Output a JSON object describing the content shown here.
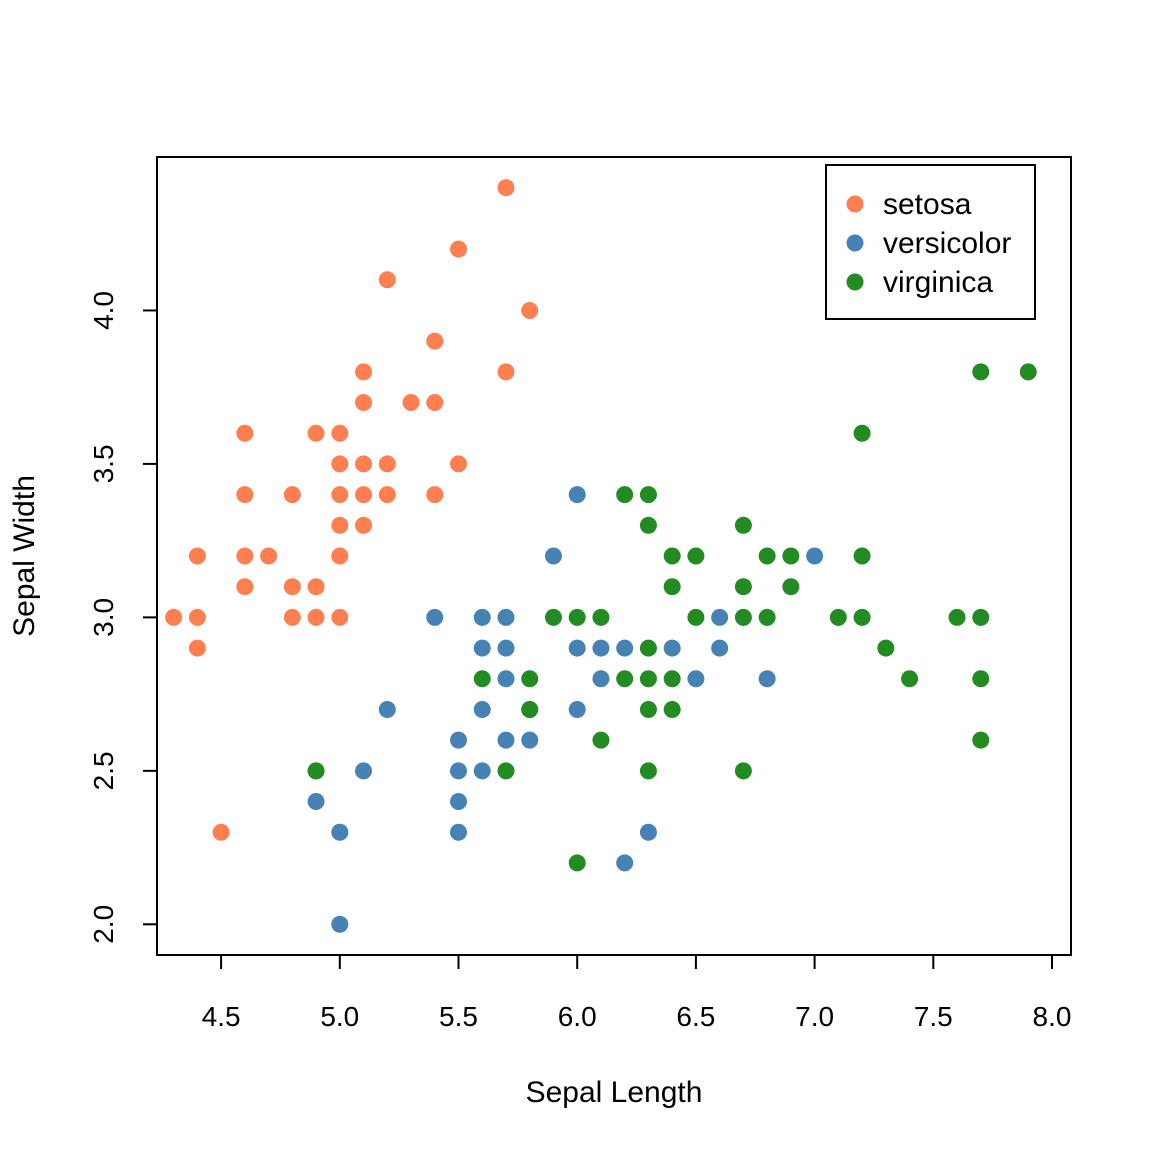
{
  "chart_data": {
    "type": "scatter",
    "title": "",
    "xlabel": "Sepal Length",
    "ylabel": "Sepal Width",
    "xlim": [
      4.23,
      8.08
    ],
    "ylim": [
      1.9,
      4.5
    ],
    "xticks": [
      "4.5",
      "5.0",
      "5.5",
      "6.0",
      "6.5",
      "7.0",
      "7.5",
      "8.0"
    ],
    "yticks": [
      "2.0",
      "2.5",
      "3.0",
      "3.5",
      "4.0"
    ],
    "grid": false,
    "legend_position": "top-right",
    "series": [
      {
        "name": "setosa",
        "color": "#FF7F50",
        "points": [
          [
            5.7,
            4.4
          ],
          [
            5.5,
            4.2
          ],
          [
            5.2,
            4.1
          ],
          [
            5.8,
            4.0
          ],
          [
            5.4,
            3.9
          ],
          [
            5.1,
            3.8
          ],
          [
            5.7,
            3.8
          ],
          [
            5.1,
            3.7
          ],
          [
            5.3,
            3.7
          ],
          [
            5.4,
            3.7
          ],
          [
            4.6,
            3.6
          ],
          [
            4.9,
            3.6
          ],
          [
            5.0,
            3.6
          ],
          [
            5.0,
            3.5
          ],
          [
            5.1,
            3.5
          ],
          [
            5.2,
            3.5
          ],
          [
            5.5,
            3.5
          ],
          [
            4.6,
            3.4
          ],
          [
            4.8,
            3.4
          ],
          [
            5.0,
            3.4
          ],
          [
            5.1,
            3.4
          ],
          [
            5.2,
            3.4
          ],
          [
            5.4,
            3.4
          ],
          [
            5.0,
            3.3
          ],
          [
            5.1,
            3.3
          ],
          [
            4.4,
            3.2
          ],
          [
            4.6,
            3.2
          ],
          [
            4.7,
            3.2
          ],
          [
            5.0,
            3.2
          ],
          [
            4.6,
            3.1
          ],
          [
            4.8,
            3.1
          ],
          [
            4.9,
            3.1
          ],
          [
            4.3,
            3.0
          ],
          [
            4.4,
            3.0
          ],
          [
            4.8,
            3.0
          ],
          [
            4.9,
            3.0
          ],
          [
            5.0,
            3.0
          ],
          [
            4.4,
            2.9
          ],
          [
            4.5,
            2.3
          ]
        ]
      },
      {
        "name": "versicolor",
        "color": "#4682B4",
        "points": [
          [
            6.0,
            3.4
          ],
          [
            5.9,
            3.2
          ],
          [
            7.0,
            3.2
          ],
          [
            5.4,
            3.0
          ],
          [
            5.6,
            3.0
          ],
          [
            5.7,
            3.0
          ],
          [
            6.6,
            3.0
          ],
          [
            5.6,
            2.9
          ],
          [
            5.7,
            2.9
          ],
          [
            6.0,
            2.9
          ],
          [
            6.1,
            2.9
          ],
          [
            6.2,
            2.9
          ],
          [
            6.4,
            2.9
          ],
          [
            6.6,
            2.9
          ],
          [
            5.7,
            2.8
          ],
          [
            6.1,
            2.8
          ],
          [
            6.5,
            2.8
          ],
          [
            6.8,
            2.8
          ],
          [
            5.2,
            2.7
          ],
          [
            5.6,
            2.7
          ],
          [
            5.8,
            2.7
          ],
          [
            6.0,
            2.7
          ],
          [
            5.5,
            2.6
          ],
          [
            5.7,
            2.6
          ],
          [
            5.8,
            2.6
          ],
          [
            4.9,
            2.5
          ],
          [
            5.1,
            2.5
          ],
          [
            5.5,
            2.5
          ],
          [
            5.6,
            2.5
          ],
          [
            4.9,
            2.4
          ],
          [
            5.5,
            2.4
          ],
          [
            5.0,
            2.3
          ],
          [
            5.5,
            2.3
          ],
          [
            6.3,
            2.3
          ],
          [
            6.2,
            2.2
          ],
          [
            5.0,
            2.0
          ]
        ]
      },
      {
        "name": "virginica",
        "color": "#228B22",
        "points": [
          [
            7.7,
            3.8
          ],
          [
            7.9,
            3.8
          ],
          [
            7.2,
            3.6
          ],
          [
            6.2,
            3.4
          ],
          [
            6.3,
            3.4
          ],
          [
            6.3,
            3.3
          ],
          [
            6.7,
            3.3
          ],
          [
            6.4,
            3.2
          ],
          [
            6.5,
            3.2
          ],
          [
            6.8,
            3.2
          ],
          [
            6.9,
            3.2
          ],
          [
            7.2,
            3.2
          ],
          [
            6.4,
            3.1
          ],
          [
            6.7,
            3.1
          ],
          [
            6.9,
            3.1
          ],
          [
            5.9,
            3.0
          ],
          [
            6.0,
            3.0
          ],
          [
            6.1,
            3.0
          ],
          [
            6.5,
            3.0
          ],
          [
            6.7,
            3.0
          ],
          [
            6.8,
            3.0
          ],
          [
            7.1,
            3.0
          ],
          [
            7.2,
            3.0
          ],
          [
            7.6,
            3.0
          ],
          [
            7.7,
            3.0
          ],
          [
            6.3,
            2.9
          ],
          [
            7.3,
            2.9
          ],
          [
            5.6,
            2.8
          ],
          [
            5.8,
            2.8
          ],
          [
            6.2,
            2.8
          ],
          [
            6.3,
            2.8
          ],
          [
            6.4,
            2.8
          ],
          [
            7.4,
            2.8
          ],
          [
            7.7,
            2.8
          ],
          [
            5.8,
            2.7
          ],
          [
            6.3,
            2.7
          ],
          [
            6.4,
            2.7
          ],
          [
            6.1,
            2.6
          ],
          [
            7.7,
            2.6
          ],
          [
            4.9,
            2.5
          ],
          [
            5.7,
            2.5
          ],
          [
            6.3,
            2.5
          ],
          [
            6.7,
            2.5
          ],
          [
            6.0,
            2.2
          ]
        ]
      }
    ]
  }
}
